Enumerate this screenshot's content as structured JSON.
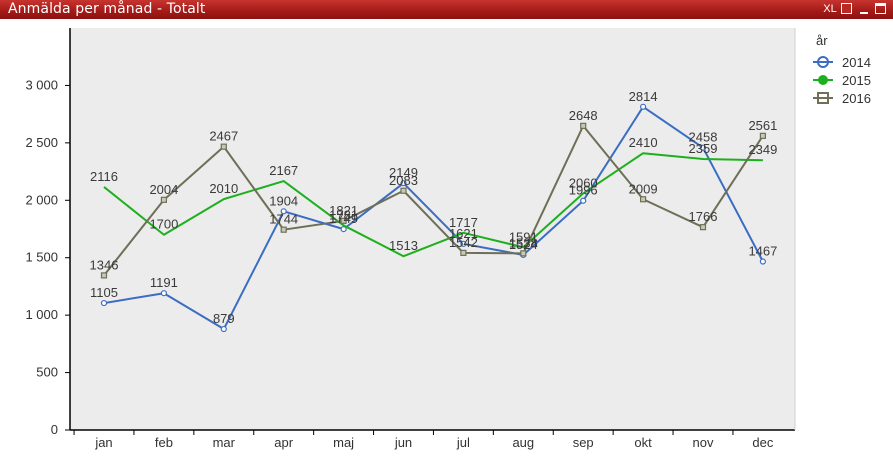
{
  "window": {
    "title": "Anmälda per månad - Totalt",
    "xl_label": "XL",
    "restore_glyph": "⧉"
  },
  "legend": {
    "title": "år"
  },
  "colors": {
    "titlebar": "#b3221e",
    "plot_bg": "#ececec",
    "series_2014": "#3a6dc3",
    "series_2015": "#1db01d",
    "series_2016": "#6f6f58"
  },
  "chart_data": {
    "type": "line",
    "title": "Anmälda per månad - Totalt",
    "xlabel": "",
    "ylabel": "",
    "ylim": [
      0,
      3500
    ],
    "yticks": [
      0,
      500,
      1000,
      1500,
      2000,
      2500,
      3000
    ],
    "ytick_labels": [
      "0",
      "500",
      "1 000",
      "1 500",
      "2 000",
      "2 500",
      "3 000"
    ],
    "categories": [
      "jan",
      "feb",
      "mar",
      "apr",
      "maj",
      "jun",
      "jul",
      "aug",
      "sep",
      "okt",
      "nov",
      "dec"
    ],
    "grid": false,
    "legend_position": "top-right",
    "series": [
      {
        "name": "2014",
        "color": "#3a6dc3",
        "marker": "circle",
        "values": [
          1105,
          1191,
          879,
          1904,
          1749,
          2149,
          1621,
          1524,
          1996,
          2814,
          2458,
          1467
        ]
      },
      {
        "name": "2015",
        "color": "#1db01d",
        "marker": "dot",
        "values": [
          2116,
          1700,
          2010,
          2167,
          1781,
          1513,
          1717,
          1591,
          2060,
          2410,
          2359,
          2349
        ]
      },
      {
        "name": "2016",
        "color": "#6f6f58",
        "marker": "square",
        "values": [
          1346,
          2004,
          2467,
          1744,
          1821,
          2083,
          1542,
          1538,
          2648,
          2009,
          1766,
          2561
        ]
      }
    ]
  }
}
